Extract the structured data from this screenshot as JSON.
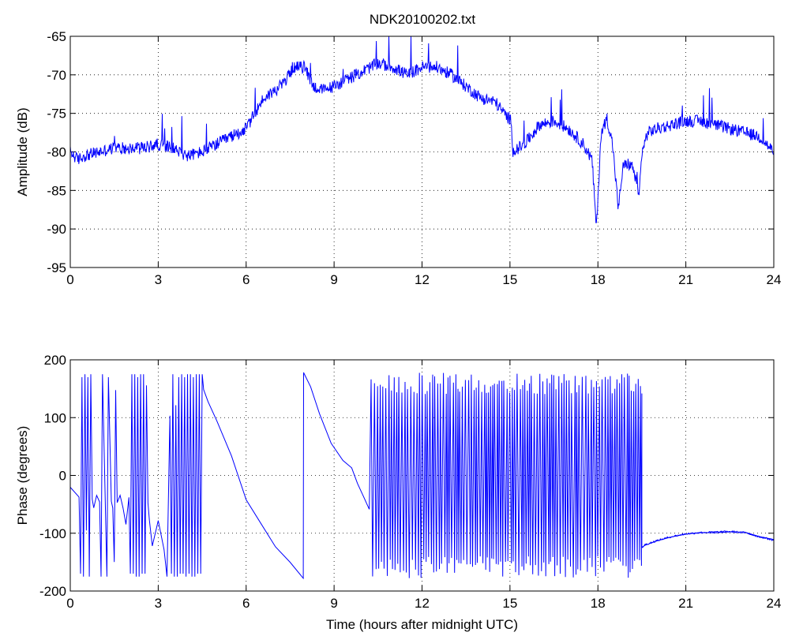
{
  "title": "NDK20100202.txt",
  "chart_data": [
    {
      "type": "line",
      "ylabel": "Amplitude (dB)",
      "xlabel": "",
      "xlim": [
        0,
        24
      ],
      "ylim": [
        -95,
        -65
      ],
      "xticks": [
        0,
        3,
        6,
        9,
        12,
        15,
        18,
        21,
        24
      ],
      "yticks": [
        -95,
        -90,
        -85,
        -80,
        -75,
        -70,
        -65
      ],
      "grid": true,
      "color": "#0000ff",
      "series": [
        {
          "x": [
            0,
            0.25,
            0.5,
            1,
            1.5,
            2,
            2.5,
            3,
            3.5,
            4,
            4.5,
            5,
            5.5,
            6,
            6.3,
            6.6,
            7,
            7.3,
            7.6,
            8,
            8.3,
            8.6,
            9,
            9.5,
            10,
            10.5,
            11,
            11.5,
            12,
            12.5,
            13,
            13.5,
            14,
            14.5,
            14.8,
            15.05,
            15.1,
            15.5,
            16,
            16.5,
            17,
            17.5,
            17.8,
            17.95,
            18.1,
            18.3,
            18.5,
            18.7,
            18.85,
            19,
            19.2,
            19.4,
            19.5,
            19.7,
            20,
            20.5,
            21,
            21.5,
            22,
            22.5,
            23,
            23.5,
            24
          ],
          "y": [
            -80,
            -81,
            -80.5,
            -80,
            -79.5,
            -79.5,
            -79.5,
            -79,
            -79.5,
            -80.5,
            -80,
            -79,
            -78,
            -77,
            -75,
            -73,
            -72,
            -71,
            -69,
            -69,
            -71.5,
            -72,
            -71.5,
            -70.5,
            -69.5,
            -68.5,
            -69,
            -70,
            -69,
            -69,
            -70,
            -71.5,
            -73,
            -73.5,
            -75,
            -76,
            -80,
            -79,
            -76.5,
            -76,
            -77,
            -79,
            -81,
            -90,
            -78,
            -75.5,
            -79,
            -87.5,
            -82,
            -81.5,
            -82,
            -86,
            -80,
            -77.5,
            -77,
            -76.5,
            -76,
            -76,
            -76.5,
            -77,
            -77.5,
            -78,
            -80
          ]
        }
      ]
    },
    {
      "type": "line",
      "ylabel": "Phase (degrees)",
      "xlabel": "Time (hours after midnight UTC)",
      "xlim": [
        0,
        24
      ],
      "ylim": [
        -200,
        200
      ],
      "xticks": [
        0,
        3,
        6,
        9,
        12,
        15,
        18,
        21,
        24
      ],
      "yticks": [
        -200,
        -100,
        0,
        100,
        200
      ],
      "grid": true,
      "color": "#0000ff",
      "series": [
        {
          "x": [
            0,
            0.3,
            0.35,
            0.4,
            0.45,
            0.5,
            0.55,
            0.6,
            0.65,
            0.7,
            0.75,
            0.8,
            0.9,
            1.0,
            1.05,
            1.1,
            1.2,
            1.25,
            1.3,
            1.4,
            1.45,
            1.5,
            1.55,
            1.6,
            1.7,
            1.8,
            1.9,
            2.0,
            2.05,
            2.1,
            2.15,
            2.2,
            2.25,
            2.3,
            2.35,
            2.4,
            2.45,
            2.5,
            2.55,
            2.6,
            2.65,
            2.7,
            2.8,
            3.0,
            3.2,
            3.3,
            3.4,
            3.45,
            3.5,
            3.55,
            3.6,
            3.65,
            3.7,
            3.75,
            3.8,
            3.85,
            3.9,
            3.95,
            4.0,
            4.05,
            4.1,
            4.15,
            4.2,
            4.25,
            4.3,
            4.35,
            4.4,
            4.45,
            4.5,
            4.55,
            4.7,
            5.0,
            5.5,
            6.0,
            6.5,
            7.0,
            7.5,
            7.95,
            7.96,
            8.2,
            8.5,
            8.9,
            9.3,
            9.6,
            9.8,
            10.0,
            10.2
          ],
          "y": [
            -20,
            -40,
            -170,
            170,
            -175,
            175,
            -100,
            170,
            -175,
            175,
            -40,
            -60,
            -30,
            -50,
            -175,
            175,
            -60,
            -175,
            170,
            -40,
            -60,
            -150,
            150,
            -50,
            -30,
            -60,
            -80,
            -40,
            -170,
            175,
            -170,
            175,
            -175,
            170,
            -175,
            175,
            -170,
            175,
            -170,
            160,
            -50,
            -80,
            -120,
            -80,
            -130,
            -175,
            100,
            -170,
            175,
            -175,
            120,
            -175,
            170,
            -170,
            175,
            -170,
            170,
            -175,
            175,
            -170,
            175,
            -175,
            170,
            -175,
            175,
            -170,
            175,
            -170,
            175,
            150,
            130,
            90,
            30,
            -40,
            -80,
            -120,
            -150,
            -178,
            178,
            150,
            110,
            60,
            30,
            10,
            -10,
            -40,
            -60
          ]
        }
      ],
      "noise_band": {
        "x_range": [
          10.2,
          19.5
        ],
        "y_range": [
          -180,
          180
        ],
        "hour_start_level": -120
      },
      "tail": {
        "x": [
          19.5,
          19.6,
          20,
          20.5,
          21,
          21.5,
          22,
          22.5,
          23,
          23.5,
          24
        ],
        "y": [
          -125,
          -120,
          -113,
          -106,
          -101,
          -99,
          -98,
          -97,
          -99,
          -106,
          -112
        ]
      }
    }
  ]
}
